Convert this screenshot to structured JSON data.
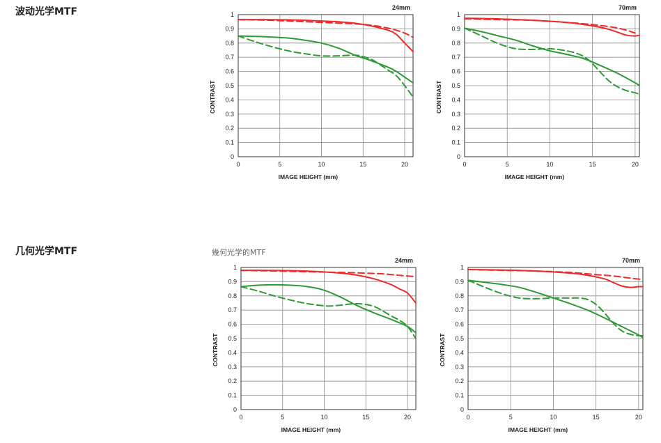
{
  "sections": [
    {
      "title": "波动光学MTF"
    },
    {
      "title": "几何光学MTF",
      "caption": "幾何光学的MTF"
    }
  ],
  "colors": {
    "red": "#ee2a2a",
    "green": "#2e9a35"
  },
  "chart_data": [
    {
      "type": "line",
      "section": "波动光学MTF",
      "title": "24mm",
      "xlabel": "IMAGE HEIGHT (mm)",
      "ylabel": "CONTRAST",
      "xlim": [
        0,
        21
      ],
      "ylim": [
        0,
        1
      ],
      "xticks": [
        "0",
        "5",
        "10",
        "15",
        "20"
      ],
      "yticks": [
        "0",
        "0.1",
        "0.2",
        "0.3",
        "0.4",
        "0.5",
        "0.6",
        "0.7",
        "0.8",
        "0.9",
        "1"
      ],
      "grid": true,
      "series": [
        {
          "color": "red",
          "dash": false,
          "x": [
            0,
            3,
            6,
            9,
            12,
            14,
            16,
            18,
            19,
            20,
            21
          ],
          "y": [
            0.965,
            0.965,
            0.963,
            0.958,
            0.95,
            0.94,
            0.92,
            0.89,
            0.86,
            0.8,
            0.74
          ]
        },
        {
          "color": "red",
          "dash": true,
          "x": [
            0,
            4,
            8,
            12,
            14,
            16,
            18,
            19,
            20,
            21
          ],
          "y": [
            0.965,
            0.96,
            0.95,
            0.94,
            0.935,
            0.925,
            0.905,
            0.89,
            0.87,
            0.84
          ]
        },
        {
          "color": "green",
          "dash": false,
          "x": [
            0,
            3,
            6,
            8,
            10,
            12,
            14,
            16,
            18,
            19,
            20,
            21
          ],
          "y": [
            0.85,
            0.845,
            0.835,
            0.82,
            0.8,
            0.765,
            0.715,
            0.675,
            0.63,
            0.6,
            0.56,
            0.52
          ]
        },
        {
          "color": "green",
          "dash": true,
          "x": [
            0,
            2,
            4,
            6,
            8,
            10,
            12,
            14,
            15,
            16,
            17,
            18,
            19,
            20,
            21
          ],
          "y": [
            0.85,
            0.81,
            0.775,
            0.745,
            0.725,
            0.71,
            0.71,
            0.715,
            0.705,
            0.685,
            0.65,
            0.61,
            0.57,
            0.5,
            0.42
          ]
        }
      ]
    },
    {
      "type": "line",
      "section": "波动光学MTF",
      "title": "70mm",
      "xlabel": "IMAGE HEIGHT (mm)",
      "ylabel": "CONTRAST",
      "xlim": [
        0,
        20.5
      ],
      "ylim": [
        0,
        1
      ],
      "xticks": [
        "0",
        "5",
        "10",
        "15",
        "20"
      ],
      "yticks": [
        "0",
        "0.1",
        "0.2",
        "0.3",
        "0.4",
        "0.5",
        "0.6",
        "0.7",
        "0.8",
        "0.9",
        "1"
      ],
      "grid": true,
      "series": [
        {
          "color": "red",
          "dash": false,
          "x": [
            0,
            4,
            8,
            12,
            14,
            16,
            17,
            18,
            19,
            20,
            20.5
          ],
          "y": [
            0.975,
            0.97,
            0.96,
            0.945,
            0.93,
            0.91,
            0.895,
            0.875,
            0.855,
            0.85,
            0.855
          ]
        },
        {
          "color": "red",
          "dash": true,
          "x": [
            0,
            4,
            8,
            12,
            15,
            17,
            18,
            19,
            20
          ],
          "y": [
            0.97,
            0.965,
            0.96,
            0.945,
            0.93,
            0.915,
            0.905,
            0.89,
            0.87
          ]
        },
        {
          "color": "green",
          "dash": false,
          "x": [
            0,
            2,
            4,
            6,
            8,
            10,
            12,
            14,
            16,
            18,
            20,
            20.5
          ],
          "y": [
            0.905,
            0.88,
            0.85,
            0.82,
            0.78,
            0.745,
            0.72,
            0.69,
            0.64,
            0.585,
            0.52,
            0.5
          ]
        },
        {
          "color": "green",
          "dash": true,
          "x": [
            0,
            2,
            4,
            6,
            8,
            10,
            12,
            13,
            14,
            15,
            16,
            17,
            18,
            19,
            20,
            20.5
          ],
          "y": [
            0.905,
            0.85,
            0.795,
            0.76,
            0.755,
            0.76,
            0.745,
            0.73,
            0.705,
            0.655,
            0.59,
            0.53,
            0.49,
            0.465,
            0.45,
            0.44
          ]
        }
      ]
    },
    {
      "type": "line",
      "section": "几何光学MTF",
      "title": "24mm",
      "xlabel": "IMAGE HEIGHT (mm)",
      "ylabel": "CONTRAST",
      "xlim": [
        0,
        21
      ],
      "ylim": [
        0,
        1
      ],
      "xticks": [
        "0",
        "5",
        "10",
        "15",
        "20"
      ],
      "yticks": [
        "0",
        "0.1",
        "0.2",
        "0.3",
        "0.4",
        "0.5",
        "0.6",
        "0.7",
        "0.8",
        "0.9",
        "1"
      ],
      "grid": true,
      "series": [
        {
          "color": "red",
          "dash": false,
          "x": [
            0,
            3,
            6,
            9,
            12,
            14,
            16,
            18,
            19,
            20,
            21
          ],
          "y": [
            0.98,
            0.98,
            0.978,
            0.972,
            0.96,
            0.945,
            0.92,
            0.88,
            0.85,
            0.82,
            0.75
          ]
        },
        {
          "color": "red",
          "dash": true,
          "x": [
            0,
            4,
            8,
            12,
            15,
            17,
            19,
            21
          ],
          "y": [
            0.98,
            0.975,
            0.97,
            0.965,
            0.96,
            0.955,
            0.945,
            0.935
          ]
        },
        {
          "color": "green",
          "dash": false,
          "x": [
            0,
            2,
            4,
            6,
            8,
            10,
            12,
            14,
            16,
            18,
            20,
            21
          ],
          "y": [
            0.865,
            0.875,
            0.878,
            0.875,
            0.865,
            0.84,
            0.79,
            0.73,
            0.68,
            0.635,
            0.585,
            0.54
          ]
        },
        {
          "color": "green",
          "dash": true,
          "x": [
            0,
            2,
            4,
            6,
            8,
            10,
            11,
            12,
            14,
            16,
            18,
            19,
            20,
            21
          ],
          "y": [
            0.865,
            0.835,
            0.8,
            0.77,
            0.745,
            0.73,
            0.73,
            0.735,
            0.745,
            0.725,
            0.66,
            0.63,
            0.585,
            0.5
          ]
        }
      ]
    },
    {
      "type": "line",
      "section": "几何光学MTF",
      "title": "70mm",
      "xlabel": "IMAGE HEIGHT (mm)",
      "ylabel": "CONTRAST",
      "xlim": [
        0,
        20.5
      ],
      "ylim": [
        0,
        1
      ],
      "xticks": [
        "0",
        "5",
        "10",
        "15",
        "20"
      ],
      "yticks": [
        "0",
        "0.1",
        "0.2",
        "0.3",
        "0.4",
        "0.5",
        "0.6",
        "0.7",
        "0.8",
        "0.9",
        "1"
      ],
      "grid": true,
      "series": [
        {
          "color": "red",
          "dash": false,
          "x": [
            0,
            4,
            8,
            12,
            14,
            16,
            17,
            18,
            19,
            20,
            20.5
          ],
          "y": [
            0.985,
            0.982,
            0.975,
            0.96,
            0.945,
            0.92,
            0.895,
            0.87,
            0.86,
            0.865,
            0.865
          ]
        },
        {
          "color": "red",
          "dash": true,
          "x": [
            0,
            4,
            8,
            12,
            15,
            17,
            19,
            20.5
          ],
          "y": [
            0.985,
            0.98,
            0.975,
            0.965,
            0.95,
            0.94,
            0.925,
            0.915
          ]
        },
        {
          "color": "green",
          "dash": false,
          "x": [
            0,
            2,
            4,
            6,
            8,
            10,
            12,
            14,
            16,
            18,
            20,
            20.5
          ],
          "y": [
            0.91,
            0.895,
            0.88,
            0.86,
            0.825,
            0.785,
            0.745,
            0.7,
            0.645,
            0.585,
            0.525,
            0.505
          ]
        },
        {
          "color": "green",
          "dash": true,
          "x": [
            0,
            2,
            4,
            6,
            8,
            10,
            12,
            13,
            14,
            15,
            16,
            17,
            18,
            19,
            20,
            20.5
          ],
          "y": [
            0.91,
            0.86,
            0.815,
            0.785,
            0.78,
            0.785,
            0.785,
            0.785,
            0.775,
            0.74,
            0.68,
            0.61,
            0.555,
            0.53,
            0.52,
            0.52
          ]
        }
      ]
    }
  ]
}
